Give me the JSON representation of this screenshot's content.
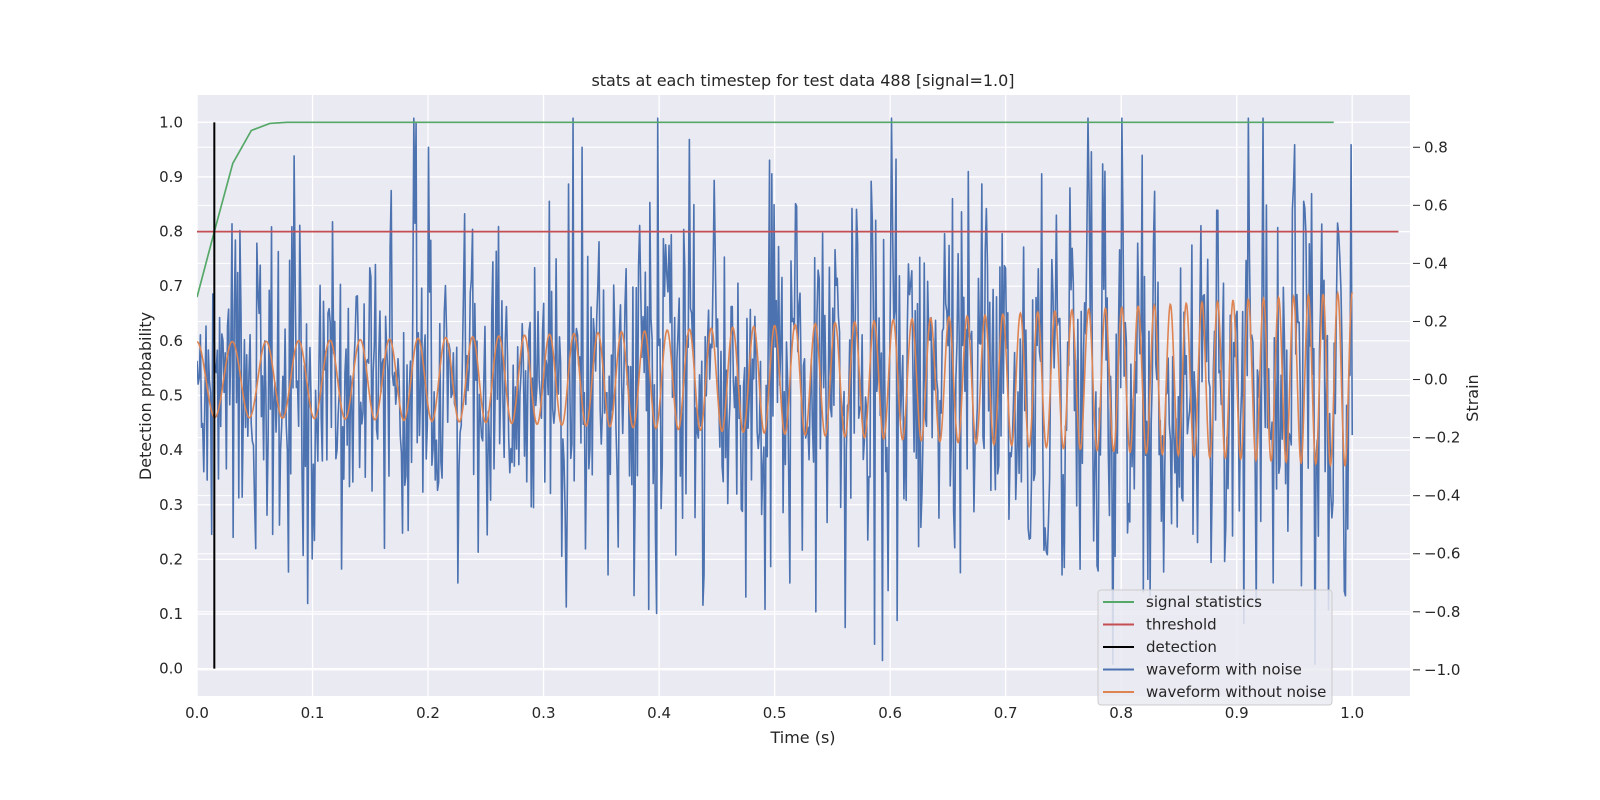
{
  "chart_data": {
    "type": "line",
    "title": "stats at each timestep for test data 488 [signal=1.0]",
    "xlabel": "Time (s)",
    "ylabel_left": "Detection probability",
    "ylabel_right": "Strain",
    "xlim": [
      0.0,
      1.05
    ],
    "ylim_left": [
      -0.05,
      1.05
    ],
    "ylim_right": [
      -1.09,
      0.98
    ],
    "x_ticks": [
      "0.0",
      "0.1",
      "0.2",
      "0.3",
      "0.4",
      "0.5",
      "0.6",
      "0.7",
      "0.8",
      "0.9",
      "1.0"
    ],
    "y_ticks_left": [
      "0.0",
      "0.1",
      "0.2",
      "0.3",
      "0.4",
      "0.5",
      "0.6",
      "0.7",
      "0.8",
      "0.9",
      "1.0"
    ],
    "y_ticks_right": [
      "−1.0",
      "−0.8",
      "−0.6",
      "−0.4",
      "−0.2",
      "0.0",
      "0.2",
      "0.4",
      "0.6",
      "0.8"
    ],
    "grid": true,
    "legend_position": "lower-right",
    "legend": [
      "signal statistics",
      "threshold",
      "detection",
      "waveform with noise",
      "waveform without noise"
    ],
    "colors": {
      "signal statistics": "#55a868",
      "threshold": "#c44e52",
      "detection": "#000000",
      "waveform with noise": "#4c72b0",
      "waveform without noise": "#dd8452",
      "plot_background": "#eaeaf2",
      "grid": "#ffffff"
    },
    "series": [
      {
        "name": "signal statistics",
        "axis": "left",
        "x": [
          0.0,
          0.015,
          0.031,
          0.047,
          0.063,
          0.078,
          0.094,
          0.11,
          0.2,
          0.4,
          0.6,
          0.8,
          0.984
        ],
        "values": [
          0.68,
          0.8,
          0.925,
          0.985,
          0.998,
          1.0,
          1.0,
          1.0,
          1.0,
          1.0,
          1.0,
          1.0,
          1.0
        ]
      },
      {
        "name": "threshold",
        "axis": "left",
        "x": [
          0.0,
          1.04
        ],
        "values": [
          0.8,
          0.8
        ]
      },
      {
        "name": "detection",
        "axis": "left",
        "x": [
          0.015,
          0.015
        ],
        "values": [
          0.0,
          1.0
        ]
      },
      {
        "name": "waveform with noise",
        "axis": "right",
        "x_start": 0.0,
        "x_end": 1.0,
        "points": 1024,
        "y_range": [
          -0.98,
          0.9
        ],
        "highlight_points": [
          [
            0.2,
            0.8
          ],
          [
            0.333,
            0.8
          ],
          [
            0.771,
            0.9
          ],
          [
            0.606,
            -0.83
          ],
          [
            0.536,
            -0.8
          ],
          [
            0.968,
            -0.99
          ],
          [
            0.906,
            -0.84
          ]
        ]
      },
      {
        "name": "waveform without noise",
        "axis": "right",
        "x_start": 0.0,
        "x_end": 1.0,
        "amplitude_start": 0.13,
        "amplitude_end": 0.3,
        "cycles_start_per_s": 32,
        "cycles_end_per_s": 80
      }
    ]
  }
}
